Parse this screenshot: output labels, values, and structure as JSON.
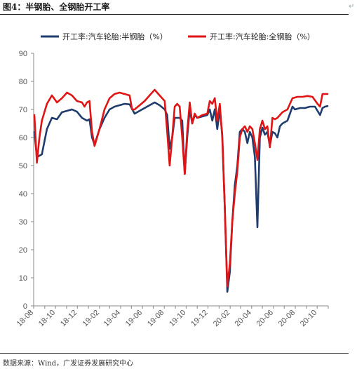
{
  "figure": {
    "title": "图4：半钢胎、全钢胎开工率",
    "source": "数据来源：Wind，广发证券发展研究中心"
  },
  "chart_data": {
    "type": "line",
    "title": "",
    "xlabel": "",
    "ylabel": "",
    "ylim": [
      0,
      90
    ],
    "yticks": [
      0,
      10,
      20,
      30,
      40,
      50,
      60,
      70,
      80,
      90
    ],
    "xlim": [
      "2018-08-01",
      "2020-11-01"
    ],
    "xtick_labels": [
      "18-08",
      "18-10",
      "18-12",
      "19-02",
      "19-04",
      "19-06",
      "19-08",
      "19-10",
      "19-12",
      "20-02",
      "20-04",
      "20-06",
      "20-08",
      "20-10"
    ],
    "grid": false,
    "legend": "top",
    "series": [
      {
        "name": "开工率:汽车轮胎:半钢胎（%）",
        "color": "#1f3c6e",
        "points": [
          [
            "2018-08-03",
            62
          ],
          [
            "2018-08-10",
            53
          ],
          [
            "2018-08-24",
            54
          ],
          [
            "2018-09-07",
            63
          ],
          [
            "2018-09-21",
            67
          ],
          [
            "2018-10-05",
            66.5
          ],
          [
            "2018-10-19",
            69
          ],
          [
            "2018-11-02",
            69.5
          ],
          [
            "2018-11-16",
            70
          ],
          [
            "2018-11-30",
            69.2
          ],
          [
            "2018-12-14",
            67
          ],
          [
            "2018-12-28",
            66
          ],
          [
            "2019-01-04",
            66.5
          ],
          [
            "2019-01-11",
            60
          ],
          [
            "2019-01-18",
            57.5
          ],
          [
            "2019-02-01",
            63
          ],
          [
            "2019-02-15",
            67
          ],
          [
            "2019-03-01",
            70
          ],
          [
            "2019-03-15",
            71
          ],
          [
            "2019-03-29",
            71.5
          ],
          [
            "2019-04-12",
            72
          ],
          [
            "2019-04-26",
            71.8
          ],
          [
            "2019-05-10",
            68.5
          ],
          [
            "2019-05-24",
            69.5
          ],
          [
            "2019-06-07",
            70.5
          ],
          [
            "2019-06-21",
            71.5
          ],
          [
            "2019-07-05",
            72.5
          ],
          [
            "2019-07-19",
            71.5
          ],
          [
            "2019-08-02",
            70
          ],
          [
            "2019-08-09",
            68
          ],
          [
            "2019-08-16",
            56
          ],
          [
            "2019-08-23",
            60
          ],
          [
            "2019-08-30",
            67
          ],
          [
            "2019-09-13",
            67
          ],
          [
            "2019-09-20",
            66
          ],
          [
            "2019-09-27",
            47
          ],
          [
            "2019-10-04",
            60
          ],
          [
            "2019-10-11",
            70
          ],
          [
            "2019-10-18",
            65
          ],
          [
            "2019-10-25",
            68
          ],
          [
            "2019-11-01",
            67
          ],
          [
            "2019-11-15",
            67.5
          ],
          [
            "2019-11-29",
            68
          ],
          [
            "2019-12-06",
            70
          ],
          [
            "2019-12-13",
            66
          ],
          [
            "2019-12-20",
            70
          ],
          [
            "2019-12-27",
            63
          ],
          [
            "2020-01-03",
            70
          ],
          [
            "2020-01-10",
            61
          ],
          [
            "2020-01-17",
            35
          ],
          [
            "2020-01-24",
            5
          ],
          [
            "2020-01-31",
            12
          ],
          [
            "2020-02-07",
            30
          ],
          [
            "2020-02-14",
            43
          ],
          [
            "2020-02-21",
            50
          ],
          [
            "2020-02-28",
            62
          ],
          [
            "2020-03-06",
            63
          ],
          [
            "2020-03-13",
            62
          ],
          [
            "2020-03-20",
            58
          ],
          [
            "2020-03-27",
            62
          ],
          [
            "2020-04-03",
            60
          ],
          [
            "2020-04-10",
            53
          ],
          [
            "2020-04-17",
            28
          ],
          [
            "2020-04-24",
            60
          ],
          [
            "2020-05-01",
            63.5
          ],
          [
            "2020-05-08",
            61
          ],
          [
            "2020-05-15",
            62
          ],
          [
            "2020-05-22",
            57
          ],
          [
            "2020-05-29",
            62
          ],
          [
            "2020-06-05",
            61.5
          ],
          [
            "2020-06-12",
            60
          ],
          [
            "2020-06-19",
            64
          ],
          [
            "2020-06-26",
            65
          ],
          [
            "2020-07-10",
            66
          ],
          [
            "2020-07-24",
            71
          ],
          [
            "2020-07-31",
            70
          ],
          [
            "2020-08-14",
            70.5
          ],
          [
            "2020-08-28",
            70.5
          ],
          [
            "2020-09-11",
            71
          ],
          [
            "2020-09-25",
            71
          ],
          [
            "2020-10-09",
            68
          ],
          [
            "2020-10-16",
            70.5
          ],
          [
            "2020-10-23",
            71
          ],
          [
            "2020-10-30",
            71.2
          ]
        ]
      },
      {
        "name": "开工率:汽车轮胎:全钢胎（%）",
        "color": "#e01414",
        "points": [
          [
            "2018-08-03",
            68
          ],
          [
            "2018-08-10",
            51
          ],
          [
            "2018-08-17",
            60
          ],
          [
            "2018-08-24",
            66
          ],
          [
            "2018-09-07",
            72
          ],
          [
            "2018-09-21",
            75
          ],
          [
            "2018-10-05",
            72.5
          ],
          [
            "2018-10-19",
            74
          ],
          [
            "2018-11-02",
            76
          ],
          [
            "2018-11-16",
            75
          ],
          [
            "2018-11-30",
            73
          ],
          [
            "2018-12-14",
            72.5
          ],
          [
            "2018-12-21",
            71
          ],
          [
            "2018-12-28",
            72.5
          ],
          [
            "2019-01-04",
            73
          ],
          [
            "2019-01-11",
            62
          ],
          [
            "2019-01-18",
            57
          ],
          [
            "2019-02-01",
            63
          ],
          [
            "2019-02-15",
            70
          ],
          [
            "2019-03-01",
            74
          ],
          [
            "2019-03-15",
            75.5
          ],
          [
            "2019-03-29",
            76
          ],
          [
            "2019-04-12",
            75.5
          ],
          [
            "2019-04-26",
            75
          ],
          [
            "2019-05-03",
            70
          ],
          [
            "2019-05-10",
            70
          ],
          [
            "2019-05-24",
            71.5
          ],
          [
            "2019-06-07",
            73
          ],
          [
            "2019-06-21",
            75
          ],
          [
            "2019-07-05",
            77
          ],
          [
            "2019-07-19",
            75
          ],
          [
            "2019-08-02",
            73
          ],
          [
            "2019-08-09",
            62
          ],
          [
            "2019-08-16",
            50
          ],
          [
            "2019-08-23",
            60
          ],
          [
            "2019-08-30",
            71
          ],
          [
            "2019-09-06",
            72
          ],
          [
            "2019-09-13",
            71
          ],
          [
            "2019-09-20",
            60
          ],
          [
            "2019-09-27",
            47
          ],
          [
            "2019-10-04",
            62
          ],
          [
            "2019-10-11",
            72.5
          ],
          [
            "2019-10-18",
            65
          ],
          [
            "2019-10-25",
            68.5
          ],
          [
            "2019-11-01",
            67
          ],
          [
            "2019-11-15",
            68
          ],
          [
            "2019-11-29",
            68.5
          ],
          [
            "2019-12-06",
            73
          ],
          [
            "2019-12-13",
            72
          ],
          [
            "2019-12-20",
            74
          ],
          [
            "2019-12-27",
            66
          ],
          [
            "2020-01-03",
            72
          ],
          [
            "2020-01-10",
            60
          ],
          [
            "2020-01-17",
            35
          ],
          [
            "2020-01-24",
            7
          ],
          [
            "2020-01-31",
            15
          ],
          [
            "2020-02-07",
            30
          ],
          [
            "2020-02-14",
            40
          ],
          [
            "2020-02-21",
            48
          ],
          [
            "2020-02-28",
            60
          ],
          [
            "2020-03-06",
            63
          ],
          [
            "2020-03-13",
            64
          ],
          [
            "2020-03-20",
            62
          ],
          [
            "2020-03-27",
            64
          ],
          [
            "2020-04-03",
            63
          ],
          [
            "2020-04-10",
            58
          ],
          [
            "2020-04-17",
            52
          ],
          [
            "2020-04-24",
            63
          ],
          [
            "2020-05-01",
            66
          ],
          [
            "2020-05-08",
            63
          ],
          [
            "2020-05-15",
            64
          ],
          [
            "2020-05-22",
            56.5
          ],
          [
            "2020-05-29",
            67
          ],
          [
            "2020-06-05",
            66.5
          ],
          [
            "2020-06-12",
            67
          ],
          [
            "2020-06-19",
            68
          ],
          [
            "2020-06-26",
            69
          ],
          [
            "2020-07-10",
            70
          ],
          [
            "2020-07-24",
            74
          ],
          [
            "2020-08-07",
            74.5
          ],
          [
            "2020-08-21",
            74.5
          ],
          [
            "2020-09-04",
            74.8
          ],
          [
            "2020-09-18",
            74.5
          ],
          [
            "2020-10-02",
            72
          ],
          [
            "2020-10-09",
            71
          ],
          [
            "2020-10-16",
            75.5
          ],
          [
            "2020-10-30",
            75.5
          ]
        ]
      }
    ]
  }
}
